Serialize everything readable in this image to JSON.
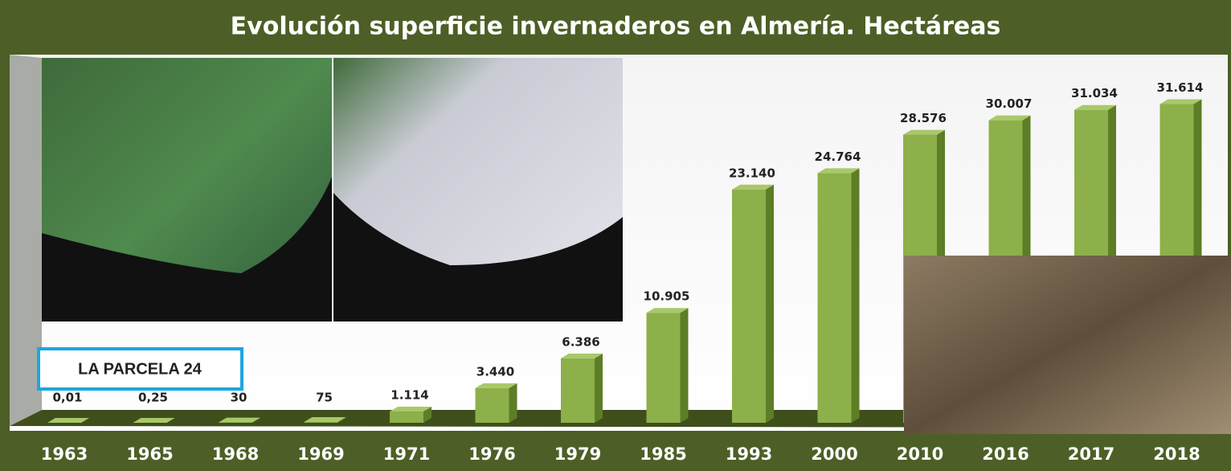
{
  "chart_data": {
    "type": "bar",
    "title": "Evolución superficie invernaderos en Almería. Hectáreas",
    "categories": [
      "1963",
      "1965",
      "1968",
      "1969",
      "1971",
      "1976",
      "1979",
      "1985",
      "1993",
      "2000",
      "2010",
      "2016",
      "2017",
      "2018"
    ],
    "values": [
      0.01,
      0.25,
      30,
      75,
      1114,
      3440,
      6386,
      10905,
      23140,
      24764,
      28576,
      30007,
      31034,
      31614
    ],
    "value_labels": [
      "0,01",
      "0,25",
      "30",
      "75",
      "1.114",
      "3.440",
      "6.386",
      "10.905",
      "23.140",
      "24.764",
      "28.576",
      "30.007",
      "31.034",
      "31.614"
    ],
    "color": "#8db04a",
    "ylim": [
      0,
      35000
    ],
    "annotation": "LA PARCELA 24"
  }
}
